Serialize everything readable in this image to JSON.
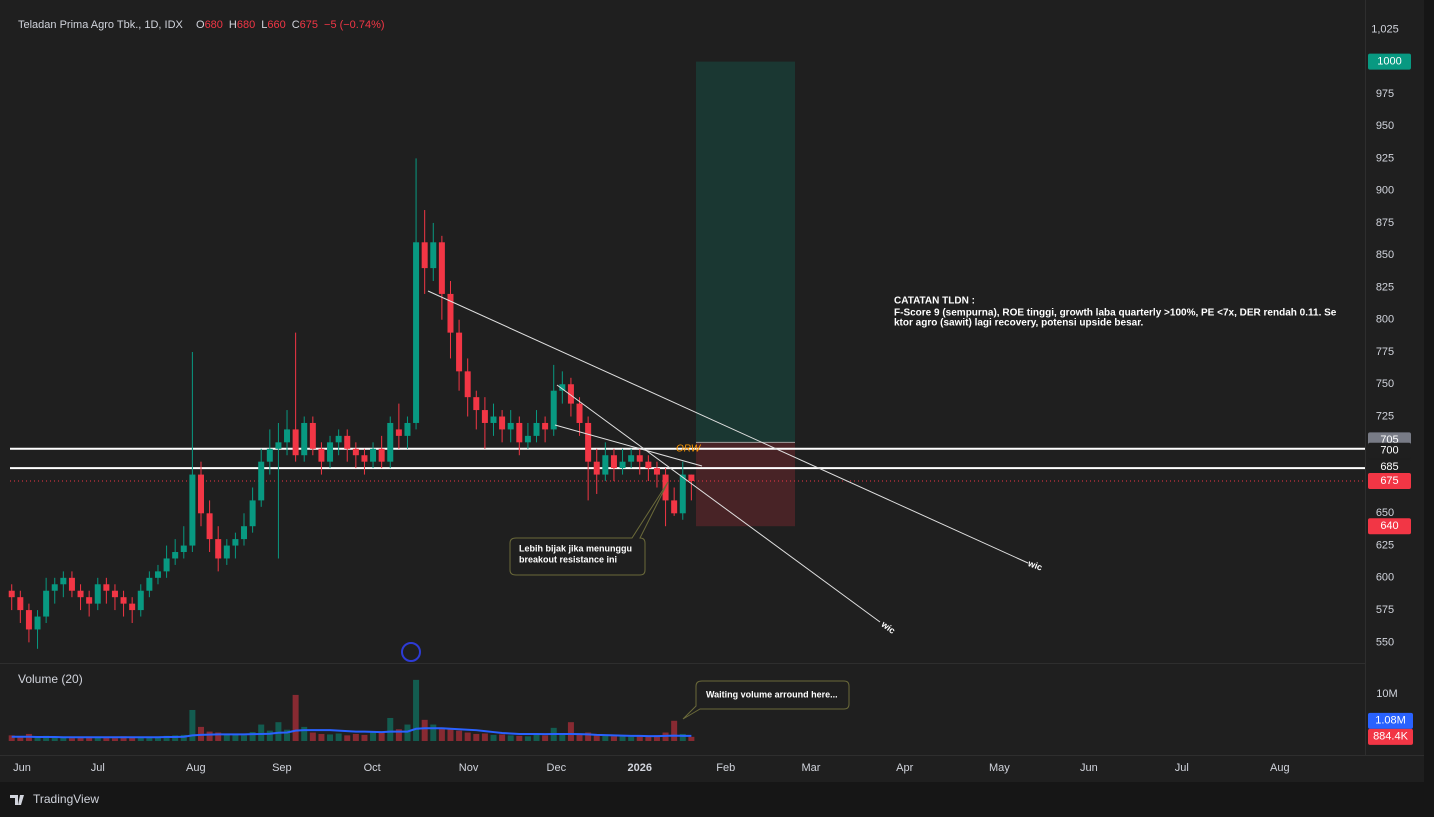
{
  "chart_data": {
    "type": "candlestick",
    "title": "Teladan Prima Agro Tbk., 1D, IDX",
    "ohlc": [
      {
        "label": "O",
        "value": 680
      },
      {
        "label": "H",
        "value": 680
      },
      {
        "label": "L",
        "value": 660
      },
      {
        "label": "C",
        "value": 675
      }
    ],
    "change": {
      "value": -5,
      "label": "−5"
    },
    "change_pct": {
      "value": -0.74,
      "label": "(−0.74%)"
    },
    "up_color": "#089981",
    "down_color": "#f23645",
    "candles": {
      "open": [
        590,
        585,
        575,
        560,
        570,
        590,
        595,
        600,
        590,
        585,
        580,
        595,
        590,
        585,
        580,
        575,
        590,
        600,
        605,
        615,
        620,
        625,
        680,
        650,
        630,
        615,
        625,
        630,
        640,
        660,
        690,
        700,
        705,
        715,
        695,
        720,
        700,
        690,
        705,
        710,
        700,
        695,
        690,
        700,
        690,
        715,
        710,
        720,
        860,
        840,
        860,
        820,
        790,
        760,
        740,
        730,
        720,
        725,
        715,
        720,
        705,
        710,
        720,
        715,
        745,
        750,
        735,
        720,
        690,
        680,
        695,
        685,
        690,
        695,
        690,
        685,
        680,
        660,
        650,
        680
      ],
      "high": [
        595,
        590,
        580,
        575,
        600,
        600,
        605,
        605,
        595,
        590,
        600,
        600,
        595,
        590,
        585,
        595,
        605,
        610,
        625,
        630,
        640,
        775,
        690,
        660,
        640,
        630,
        635,
        650,
        670,
        700,
        715,
        720,
        730,
        790,
        725,
        725,
        705,
        710,
        715,
        715,
        705,
        700,
        705,
        710,
        725,
        735,
        725,
        925,
        885,
        875,
        865,
        830,
        800,
        770,
        745,
        740,
        735,
        730,
        730,
        725,
        720,
        730,
        725,
        765,
        760,
        755,
        740,
        725,
        700,
        705,
        700,
        700,
        700,
        700,
        695,
        690,
        685,
        670,
        690,
        680
      ],
      "low": [
        575,
        565,
        550,
        545,
        565,
        580,
        585,
        585,
        575,
        570,
        575,
        580,
        575,
        570,
        565,
        570,
        585,
        595,
        600,
        610,
        615,
        620,
        640,
        620,
        605,
        610,
        615,
        625,
        635,
        655,
        680,
        615,
        695,
        690,
        690,
        695,
        680,
        685,
        695,
        690,
        685,
        680,
        685,
        685,
        685,
        700,
        700,
        715,
        820,
        830,
        800,
        770,
        745,
        725,
        715,
        700,
        710,
        705,
        705,
        695,
        700,
        705,
        705,
        710,
        735,
        725,
        710,
        660,
        665,
        675,
        675,
        680,
        685,
        680,
        675,
        670,
        640,
        648,
        645,
        660
      ],
      "close": [
        585,
        575,
        560,
        570,
        590,
        595,
        600,
        590,
        585,
        580,
        595,
        590,
        585,
        580,
        575,
        590,
        600,
        605,
        615,
        620,
        625,
        680,
        650,
        630,
        615,
        625,
        630,
        640,
        660,
        690,
        700,
        705,
        715,
        695,
        720,
        700,
        690,
        705,
        710,
        700,
        695,
        690,
        700,
        690,
        720,
        710,
        720,
        860,
        840,
        860,
        820,
        790,
        760,
        740,
        730,
        720,
        725,
        715,
        720,
        705,
        710,
        720,
        715,
        745,
        750,
        735,
        720,
        690,
        680,
        695,
        685,
        690,
        695,
        690,
        685,
        680,
        660,
        650,
        680,
        675
      ]
    },
    "xlim": [
      -0.2,
      157.3
    ],
    "xticks": [
      {
        "value": 1.2,
        "label": "Jun"
      },
      {
        "value": 10,
        "label": "Jul"
      },
      {
        "value": 21.4,
        "label": "Aug"
      },
      {
        "value": 31.4,
        "label": "Sep"
      },
      {
        "value": 41.9,
        "label": "Oct"
      },
      {
        "value": 53.1,
        "label": "Nov"
      },
      {
        "value": 63.3,
        "label": "Dec"
      },
      {
        "value": 73,
        "label": "2026"
      },
      {
        "value": 83,
        "label": "Feb"
      },
      {
        "value": 92.9,
        "label": "Mar"
      },
      {
        "value": 103.8,
        "label": "Apr"
      },
      {
        "value": 114.8,
        "label": "May"
      },
      {
        "value": 125.2,
        "label": "Jun"
      },
      {
        "value": 136,
        "label": "Jul"
      },
      {
        "value": 147.4,
        "label": "Aug"
      }
    ],
    "ylim": [
      534,
      1040
    ],
    "yticks": [
      550,
      575,
      600,
      625,
      650,
      675,
      700,
      725,
      750,
      775,
      800,
      825,
      850,
      875,
      900,
      925,
      950,
      975,
      1000,
      {
        "value": 1025,
        "label": "1,025"
      }
    ],
    "position": {
      "target": 1000,
      "entry": 705,
      "stop": 640
    },
    "hlines": [
      700,
      685
    ],
    "last_price": 675,
    "volume": {
      "title": "Volume (20)",
      "values": [
        1.2,
        0.9,
        1.5,
        0.8,
        1.1,
        0.7,
        0.9,
        0.6,
        0.8,
        0.7,
        0.8,
        0.7,
        0.6,
        1.0,
        0.9,
        0.7,
        0.8,
        0.9,
        1.1,
        1.2,
        1.3,
        6.6,
        3.0,
        2.0,
        1.8,
        1.5,
        1.3,
        1.2,
        1.9,
        3.5,
        2.2,
        4.0,
        2.4,
        9.8,
        3.0,
        1.8,
        1.5,
        1.4,
        1.6,
        1.2,
        1.5,
        1.3,
        2.0,
        1.8,
        4.9,
        2.5,
        3.5,
        13.0,
        4.5,
        3.5,
        2.8,
        2.5,
        2.2,
        1.8,
        1.5,
        1.6,
        1.3,
        1.4,
        1.2,
        1.1,
        1.0,
        1.3,
        1.2,
        2.8,
        1.6,
        4.0,
        1.6,
        1.8,
        1.2,
        1.3,
        1.0,
        1.1,
        0.9,
        1.0,
        0.9,
        1.2,
        1.8,
        4.3,
        1.5,
        0.8844
      ],
      "ma_values": [
        0.9,
        0.9,
        0.9,
        0.85,
        0.85,
        0.85,
        0.8,
        0.8,
        0.8,
        0.8,
        0.8,
        0.8,
        0.8,
        0.8,
        0.8,
        0.8,
        0.8,
        0.8,
        0.85,
        0.85,
        0.9,
        1.2,
        1.3,
        1.35,
        1.4,
        1.4,
        1.4,
        1.4,
        1.45,
        1.5,
        1.55,
        1.75,
        1.8,
        2.2,
        2.3,
        2.3,
        2.3,
        2.3,
        2.2,
        2.1,
        2.0,
        2.0,
        1.95,
        1.9,
        2.0,
        2.0,
        2.0,
        2.6,
        2.7,
        2.7,
        2.7,
        2.6,
        2.5,
        2.4,
        2.3,
        2.1,
        1.9,
        1.7,
        1.6,
        1.5,
        1.5,
        1.5,
        1.45,
        1.5,
        1.5,
        1.5,
        1.45,
        1.4,
        1.3,
        1.25,
        1.2,
        1.15,
        1.1,
        1.1,
        1.05,
        1.05,
        1.1,
        1.15,
        1.1,
        1.08
      ],
      "ma_color": "#2962ff",
      "ylim": [
        0,
        15.1
      ],
      "yticks": [
        {
          "value": 10,
          "label": "10M"
        }
      ],
      "last_label": {
        "value": 0.8844,
        "label": "884.4K"
      },
      "ma_last_label": {
        "value": 1.08,
        "label": "1.08M"
      }
    },
    "annotations": {
      "orw": "ORW",
      "note": [
        "CATATAN TLDN :",
        "F-Score 9 (sempurna), ROE tinggi, growth laba quarterly >100%, PE <7x, DER rendah 0.11. Se",
        "ktor agro (sawit) lagi recovery, potensi upside besar."
      ],
      "callout_1": [
        "Lebih bijak jika menunggu",
        "breakout resistance ini"
      ],
      "callout_2": "Waiting volume arround here...",
      "line_label_1": "wic",
      "line_label_2": "wic"
    },
    "brand": "TradingView"
  }
}
